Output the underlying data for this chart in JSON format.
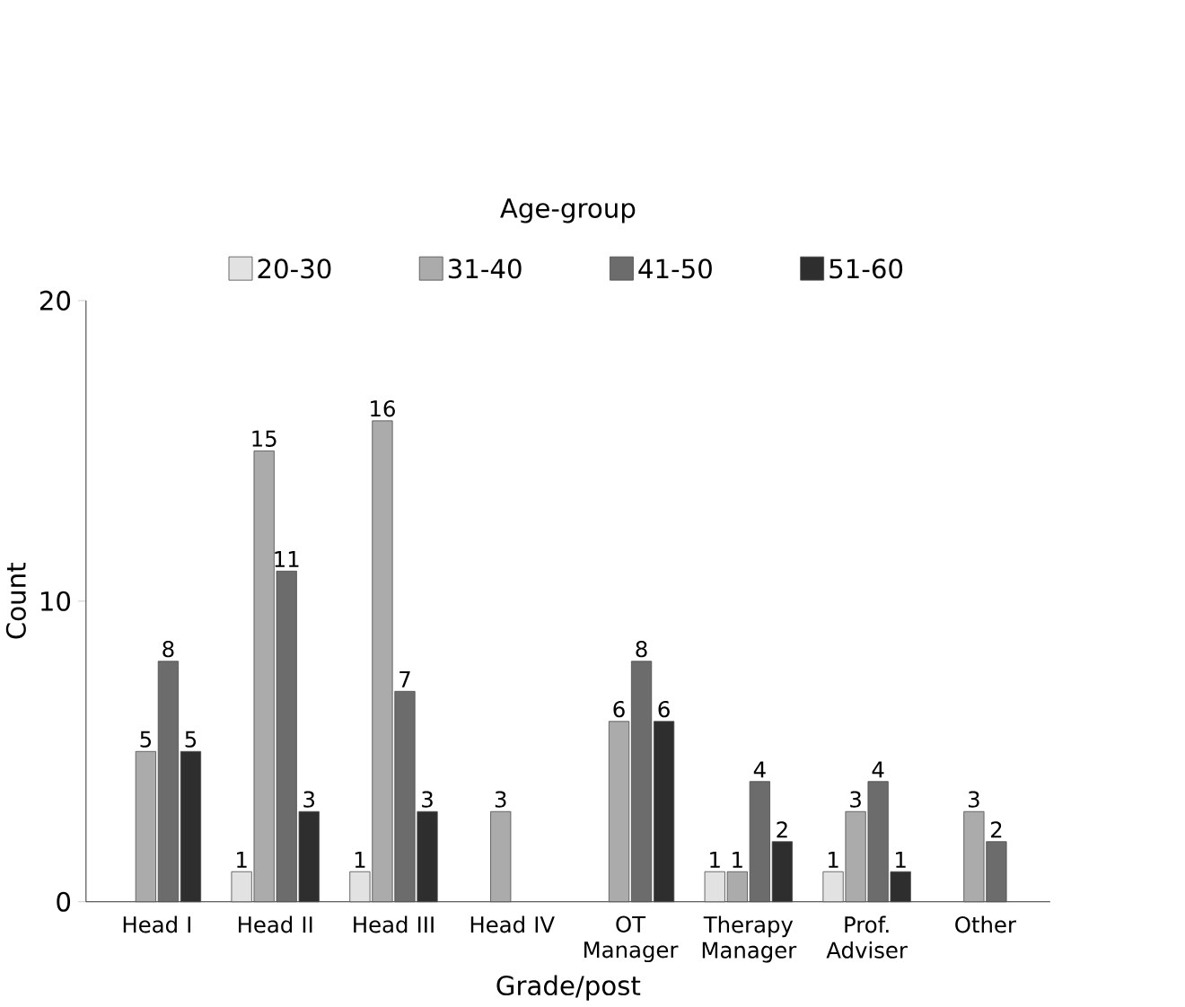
{
  "chart_data": {
    "type": "bar",
    "xlabel": "Grade/post",
    "ylabel": "Count",
    "legend_title": "Age-group",
    "categories": [
      "Head I",
      "Head II",
      "Head III",
      "Head IV",
      "OT Manager",
      "Therapy Manager",
      "Prof. Adviser",
      "Other"
    ],
    "series": [
      {
        "name": "20-30",
        "color": "#e2e2e2",
        "values": [
          null,
          1,
          1,
          null,
          null,
          1,
          1,
          null
        ]
      },
      {
        "name": "31-40",
        "color": "#ababab",
        "values": [
          5,
          15,
          16,
          3,
          6,
          1,
          3,
          3
        ]
      },
      {
        "name": "41-50",
        "color": "#6c6c6c",
        "values": [
          8,
          11,
          7,
          null,
          8,
          4,
          4,
          2
        ]
      },
      {
        "name": "51-60",
        "color": "#2e2e2e",
        "values": [
          5,
          3,
          3,
          null,
          6,
          2,
          1,
          null
        ]
      }
    ],
    "ylim": [
      0,
      20
    ],
    "yticks": [
      0,
      10,
      20
    ],
    "data_labels": true,
    "legend": "top",
    "grid": false
  }
}
